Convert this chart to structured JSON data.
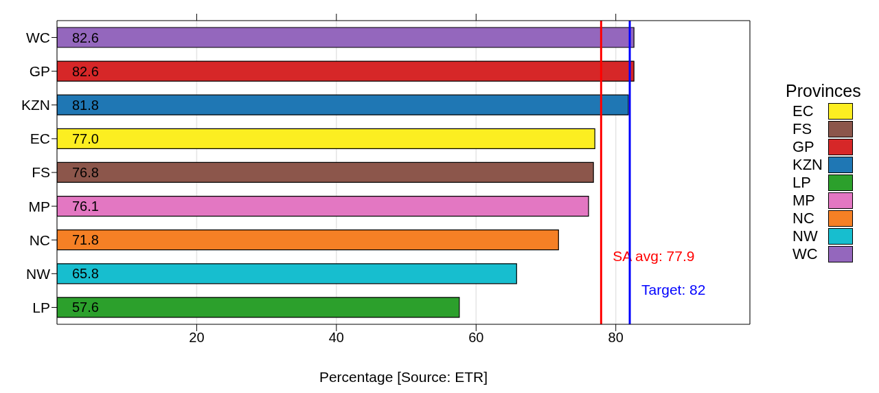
{
  "chart_data": {
    "type": "bar",
    "orientation": "horizontal",
    "stacked": true,
    "categories": [
      "WC",
      "GP",
      "KZN",
      "EC",
      "FS",
      "MP",
      "NC",
      "NW",
      "LP"
    ],
    "series": [
      {
        "name": "EC",
        "color": "#fcee21",
        "values": [
          null,
          null,
          null,
          77.0,
          null,
          null,
          null,
          null,
          null
        ]
      },
      {
        "name": "FS",
        "color": "#8c564b",
        "values": [
          null,
          null,
          null,
          null,
          76.8,
          null,
          null,
          null,
          null
        ]
      },
      {
        "name": "GP",
        "color": "#d62728",
        "values": [
          null,
          82.6,
          null,
          null,
          null,
          null,
          null,
          null,
          null
        ]
      },
      {
        "name": "KZN",
        "color": "#1f77b4",
        "values": [
          null,
          null,
          81.8,
          null,
          null,
          null,
          null,
          null,
          null
        ]
      },
      {
        "name": "LP",
        "color": "#2ca02c",
        "values": [
          null,
          null,
          null,
          null,
          null,
          null,
          null,
          null,
          57.6
        ]
      },
      {
        "name": "MP",
        "color": "#e377c2",
        "values": [
          null,
          null,
          null,
          null,
          null,
          76.1,
          null,
          null,
          null
        ]
      },
      {
        "name": "NC",
        "color": "#f58025",
        "values": [
          null,
          null,
          null,
          null,
          null,
          null,
          71.8,
          null,
          null
        ]
      },
      {
        "name": "NW",
        "color": "#17becf",
        "values": [
          null,
          null,
          null,
          null,
          null,
          null,
          null,
          65.8,
          null
        ]
      },
      {
        "name": "WC",
        "color": "#9467bd",
        "values": [
          82.6,
          null,
          null,
          null,
          null,
          null,
          null,
          null,
          null
        ]
      }
    ],
    "value_labels": [
      "82.6",
      "82.6",
      "81.8",
      "77.0",
      "76.8",
      "76.1",
      "71.8",
      "65.8",
      "57.6"
    ],
    "xlabel": "Percentage [Source: ETR]",
    "xlim": [
      0,
      99.2
    ],
    "xticks": [
      20,
      40,
      60,
      80
    ],
    "grid": "x",
    "legend": "right",
    "legend_title": "Provinces",
    "ref_lines": [
      {
        "axis": "x",
        "value": 77.9,
        "label": "SA avg: 77.9",
        "color": "#ff0000"
      },
      {
        "axis": "x",
        "value": 82,
        "label": "Target:  82",
        "color": "#0000ff"
      }
    ]
  }
}
